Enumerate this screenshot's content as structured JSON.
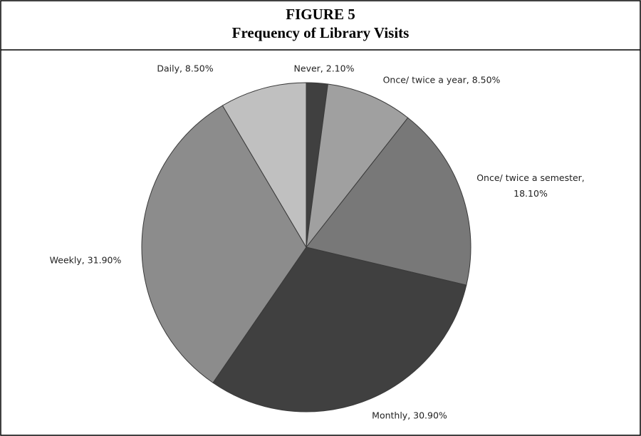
{
  "chart_data": {
    "type": "pie",
    "title": "FIGURE 5",
    "subtitle": "Frequency of Library Visits",
    "values": [
      2.1,
      8.5,
      18.1,
      30.9,
      31.9,
      8.5
    ],
    "value_labels": [
      "Never, 2.10%",
      "Once/ twice a year, 8.50%",
      "Once/ twice a semester, 18.10%",
      "Monthly, 30.90%",
      "Weekly, 31.90%",
      "Daily, 8.50%"
    ],
    "colors": [
      "#404040",
      "#a0a0a0",
      "#787878",
      "#404040",
      "#8c8c8c",
      "#c0c0c0"
    ]
  }
}
